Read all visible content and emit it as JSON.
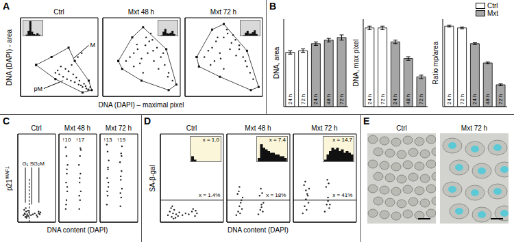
{
  "chart_data": [
    {
      "panel": "A",
      "type": "scatter",
      "xlabel": "DNA (DAPI) – maximal pixel",
      "ylabel": "DNA (DAPI) - area",
      "xlim": [
        0,
        100
      ],
      "ylim": [
        0,
        100
      ],
      "tick_labels": false,
      "color": "#222222",
      "plots": [
        {
          "title": "Ctrl",
          "x": [
            45,
            50,
            55,
            60,
            65,
            70,
            75,
            78,
            80,
            82,
            85,
            88,
            72,
            68,
            62,
            58,
            52,
            48,
            76,
            84,
            66,
            74,
            79,
            87,
            90
          ],
          "y": [
            30,
            28,
            25,
            22,
            20,
            18,
            15,
            14,
            12,
            16,
            10,
            9,
            24,
            28,
            32,
            35,
            38,
            33,
            20,
            13,
            40,
            50,
            55,
            8,
            12
          ],
          "gate": {
            "x": [
              20,
              45,
              80,
              92,
              88,
              70,
              62,
              40
            ],
            "y": [
              40,
              22,
              5,
              8,
              20,
              45,
              62,
              50
            ]
          },
          "annotations": [
            {
              "text": "M",
              "x": 88,
              "y": 65,
              "arrow_to": [
                68,
                48
              ]
            },
            {
              "text": "pM",
              "x": 30,
              "y": 10,
              "arrow_to": [
                55,
                20
              ]
            }
          ],
          "inset": {
            "values": [
              0,
              2,
              10,
              30,
              8,
              3,
              2,
              5,
              2,
              0
            ],
            "ylim": [
              0,
              30
            ]
          }
        },
        {
          "title": "Mxt 48 h",
          "x": [
            30,
            35,
            40,
            45,
            50,
            55,
            60,
            65,
            70,
            75,
            80,
            85,
            90,
            40,
            48,
            56,
            62,
            64,
            78,
            52,
            44,
            66,
            84,
            58,
            72
          ],
          "y": [
            45,
            50,
            55,
            60,
            48,
            65,
            70,
            58,
            62,
            50,
            40,
            30,
            20,
            38,
            42,
            75,
            80,
            72,
            55,
            30,
            66,
            45,
            25,
            55,
            35
          ],
          "gate": {
            "x": [
              20,
              38,
              52,
              82,
              95,
              85,
              50,
              25
            ],
            "y": [
              45,
              75,
              88,
              60,
              15,
              8,
              20,
              35
            ]
          },
          "inset": {
            "values": [
              0,
              1,
              8,
              14,
              5,
              4,
              6,
              10,
              3,
              0
            ],
            "ylim": [
              0,
              30
            ]
          }
        },
        {
          "title": "Mxt 72 h",
          "x": [
            25,
            30,
            35,
            40,
            45,
            50,
            55,
            60,
            65,
            70,
            75,
            80,
            88,
            38,
            46,
            54,
            62,
            70,
            78,
            50,
            42,
            66,
            84,
            58,
            33
          ],
          "y": [
            50,
            58,
            62,
            70,
            55,
            75,
            80,
            68,
            72,
            60,
            50,
            38,
            22,
            45,
            48,
            85,
            78,
            65,
            45,
            35,
            75,
            52,
            30,
            60,
            40
          ],
          "gate": {
            "x": [
              15,
              35,
              50,
              80,
              95,
              85,
              45,
              18
            ],
            "y": [
              50,
              85,
              92,
              58,
              12,
              8,
              25,
              38
            ]
          },
          "inset": {
            "values": [
              0,
              1,
              6,
              10,
              4,
              4,
              7,
              11,
              3,
              0
            ],
            "ylim": [
              0,
              30
            ]
          }
        }
      ]
    },
    {
      "panel": "B",
      "type": "bar",
      "categories": [
        "24 h",
        "72 h",
        "24 h",
        "48 h",
        "72 h"
      ],
      "ylim": [
        0,
        1
      ],
      "tick_labels": false,
      "legend": "top-right",
      "series": [
        {
          "name": "Ctrl",
          "color": "#ffffff"
        },
        {
          "name": "Mxt",
          "color": "#a6a6a6"
        }
      ],
      "plots": [
        {
          "ylabel": "DNA, area",
          "values": [
            [
              0.62,
              0.64,
              null,
              null,
              null
            ],
            [
              null,
              null,
              0.72,
              0.76,
              0.79
            ]
          ],
          "errors": [
            [
              0.02,
              0.02,
              null,
              null,
              null
            ],
            [
              null,
              null,
              0.02,
              0.02,
              0.03
            ]
          ]
        },
        {
          "ylabel": "DNA, max pixel",
          "values": [
            [
              0.9,
              0.9,
              null,
              null,
              null
            ],
            [
              null,
              null,
              0.74,
              0.55,
              0.34
            ]
          ],
          "errors": [
            [
              0.02,
              0.02,
              null,
              null,
              null
            ],
            [
              null,
              null,
              0.02,
              0.02,
              0.02
            ]
          ]
        },
        {
          "ylabel": "Ratio mp/area",
          "values": [
            [
              0.92,
              0.9,
              null,
              null,
              null
            ],
            [
              null,
              null,
              0.72,
              0.5,
              0.25
            ]
          ],
          "errors": [
            [
              0.01,
              0.01,
              null,
              null,
              null
            ],
            [
              null,
              null,
              0.01,
              0.01,
              0.01
            ]
          ]
        }
      ]
    },
    {
      "panel": "C",
      "type": "scatter",
      "xlabel": "DNA content (DAPI)",
      "ylabel": {
        "text": "p21",
        "superscript": "WAF1"
      },
      "xlim": [
        0,
        100
      ],
      "ylim": [
        0,
        100
      ],
      "tick_labels": false,
      "color": "#222222",
      "plots": [
        {
          "title": "Ctrl",
          "x": [
            15,
            18,
            20,
            22,
            25,
            28,
            30,
            35,
            40,
            45,
            50,
            55,
            58,
            60,
            17,
            23,
            27,
            52,
            56,
            19,
            24,
            21
          ],
          "y": [
            8,
            10,
            6,
            12,
            9,
            7,
            11,
            8,
            9,
            10,
            8,
            12,
            9,
            11,
            14,
            5,
            13,
            6,
            10,
            9,
            7,
            16
          ],
          "divider": {
            "x": 30,
            "y": [
              0,
              50
            ],
            "line_style": "dashed"
          },
          "annotations": [
            {
              "text": "G₁",
              "x": 20,
              "y": 62,
              "arrow_to": [
                20,
                22
              ]
            },
            {
              "text": "S",
              "x": 37,
              "y": 62,
              "arrow_to": [
                37,
                20
              ]
            },
            {
              "text": "G₂M",
              "x": 56,
              "y": 62,
              "arrow_to": [
                56,
                22
              ]
            }
          ]
        },
        {
          "title": "Mxt 48 h",
          "x": [
            18,
            20,
            22,
            19,
            21,
            23,
            20,
            18,
            22,
            19,
            54,
            56,
            58,
            55,
            57,
            53,
            56,
            58,
            55,
            54,
            21,
            57
          ],
          "y": [
            15,
            25,
            35,
            45,
            55,
            65,
            75,
            85,
            40,
            20,
            15,
            25,
            35,
            45,
            55,
            65,
            75,
            82,
            50,
            30,
            60,
            84
          ],
          "annotations": [
            {
              "text": "↑10",
              "x": 20,
              "y": 94
            },
            {
              "text": "↑17",
              "x": 56,
              "y": 94
            }
          ]
        },
        {
          "title": "Mxt 72 h",
          "x": [
            18,
            20,
            22,
            19,
            21,
            23,
            20,
            18,
            22,
            19,
            54,
            56,
            58,
            55,
            57,
            53,
            56,
            58,
            55,
            54,
            21,
            57
          ],
          "y": [
            20,
            30,
            40,
            50,
            60,
            70,
            80,
            88,
            45,
            35,
            18,
            28,
            38,
            48,
            58,
            68,
            78,
            86,
            52,
            33,
            62,
            75
          ],
          "annotations": [
            {
              "text": "↑13",
              "x": 20,
              "y": 94
            },
            {
              "text": "↑19",
              "x": 56,
              "y": 94
            }
          ]
        }
      ]
    },
    {
      "panel": "D",
      "type": "scatter",
      "xlabel": "DNA content (DAPI)",
      "ylabel": "SA-β-gal",
      "xlim": [
        0,
        100
      ],
      "ylim": [
        0,
        100
      ],
      "tick_labels": false,
      "color": "#222222",
      "plots": [
        {
          "title": "Ctrl",
          "x": [
            12,
            15,
            18,
            20,
            22,
            25,
            28,
            30,
            35,
            40,
            45,
            50,
            55,
            58,
            17,
            24,
            52,
            19,
            21,
            56
          ],
          "y": [
            8,
            12,
            6,
            10,
            14,
            9,
            7,
            11,
            8,
            10,
            9,
            12,
            7,
            10,
            16,
            5,
            15,
            18,
            4,
            13
          ],
          "threshold": 25,
          "annotations": [
            {
              "text": "x = 1.4%",
              "x": 78,
              "y": 31
            }
          ],
          "inset": {
            "values": [
              3,
              1,
              0,
              0,
              0,
              0,
              0,
              0,
              0,
              0,
              0,
              0
            ],
            "ylim": [
              0,
              10
            ],
            "label": "x = 1.0"
          }
        },
        {
          "title": "Mxt 48 h",
          "x": [
            15,
            18,
            20,
            22,
            25,
            17,
            21,
            24,
            19,
            23,
            50,
            53,
            55,
            58,
            52,
            56,
            54,
            57,
            20,
            55
          ],
          "y": [
            8,
            12,
            18,
            22,
            28,
            32,
            10,
            15,
            35,
            25,
            9,
            14,
            20,
            22,
            30,
            33,
            38,
            12,
            40,
            17
          ],
          "threshold": 25,
          "annotations": [
            {
              "text": "x = 18%",
              "x": 78,
              "y": 31
            }
          ],
          "inset": {
            "values": [
              2,
              10,
              8,
              7,
              6,
              5,
              5,
              4,
              4,
              3,
              3,
              2
            ],
            "ylim": [
              0,
              10
            ],
            "label": "x = 7.4"
          }
        },
        {
          "title": "Mxt 72 h",
          "x": [
            15,
            18,
            20,
            22,
            25,
            17,
            21,
            24,
            19,
            23,
            50,
            53,
            55,
            58,
            52,
            56,
            54,
            57,
            20,
            55
          ],
          "y": [
            10,
            18,
            26,
            32,
            38,
            42,
            14,
            22,
            46,
            30,
            12,
            20,
            28,
            20,
            40,
            44,
            48,
            16,
            36,
            24
          ],
          "threshold": 25,
          "annotations": [
            {
              "text": "x = 41%",
              "x": 78,
              "y": 31
            }
          ],
          "inset": {
            "values": [
              1,
              4,
              6,
              8,
              7,
              8,
              6,
              7,
              5,
              6,
              5,
              4
            ],
            "ylim": [
              0,
              10
            ],
            "label": "x = 14.7"
          }
        }
      ]
    },
    {
      "panel": "E",
      "type": "image",
      "images": [
        {
          "title": "Ctrl"
        },
        {
          "title": "Mxt 72 h"
        }
      ]
    }
  ]
}
